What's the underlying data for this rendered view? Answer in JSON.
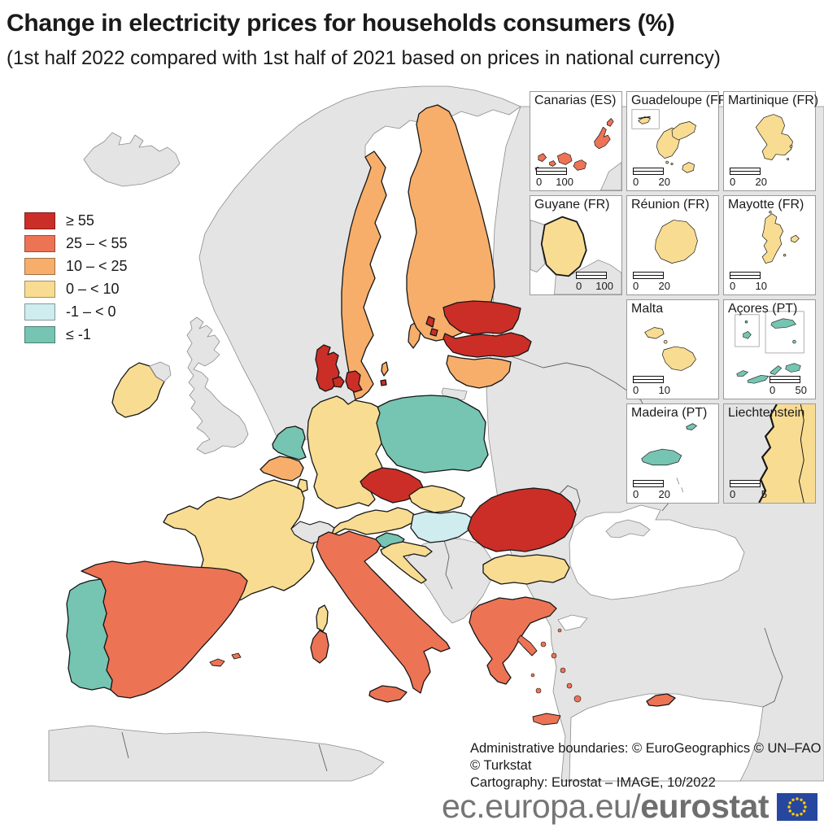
{
  "title": "Change in electricity prices for households consumers (%)",
  "subtitle": "(1st half 2022 compared with 1st half of 2021 based on prices in national currency)",
  "legend": {
    "classes": [
      {
        "key": "c1",
        "label": "≥ 55",
        "color": "#cb2e27"
      },
      {
        "key": "c2",
        "label": "25 – < 55",
        "color": "#ed7355"
      },
      {
        "key": "c3",
        "label": "10 – < 25",
        "color": "#f7ae6b"
      },
      {
        "key": "c4",
        "label": "0 – < 10",
        "color": "#f8dc92"
      },
      {
        "key": "c5",
        "label": "-1 – < 0",
        "color": "#cfecee"
      },
      {
        "key": "c6",
        "label": "≤ -1",
        "color": "#76c4b2"
      }
    ],
    "no_data_color": "#e4e4e4"
  },
  "map": {
    "country_classes": {
      "SE": "c3",
      "FI": "c3",
      "EE": "c1",
      "LV": "c1",
      "LT": "c3",
      "DK": "c1",
      "PL": "c6",
      "DE": "c4",
      "NL": "c6",
      "BE": "c3",
      "LU": "c4",
      "FR": "c4",
      "IE": "c4",
      "CZ": "c1",
      "SK": "c4",
      "AT": "c4",
      "HU": "c5",
      "SI": "c6",
      "HR": "c4",
      "RO": "c1",
      "BG": "c4",
      "EL": "c2",
      "IT": "c2",
      "ES": "c2",
      "PT": "c6",
      "CY": "c2"
    }
  },
  "insets": [
    {
      "name": "Canarias (ES)",
      "class_key": "c2",
      "scale_min": "0",
      "scale_max": "100"
    },
    {
      "name": "Guadeloupe (FR)",
      "class_key": "c4",
      "scale_min": "0",
      "scale_max": "20"
    },
    {
      "name": "Martinique (FR)",
      "class_key": "c4",
      "scale_min": "0",
      "scale_max": "20"
    },
    {
      "name": "Guyane (FR)",
      "class_key": "c4",
      "scale_min": "0",
      "scale_max": "100"
    },
    {
      "name": "Réunion (FR)",
      "class_key": "c4",
      "scale_min": "0",
      "scale_max": "20"
    },
    {
      "name": "Mayotte (FR)",
      "class_key": "c4",
      "scale_min": "0",
      "scale_max": "10"
    },
    {
      "name": "Malta",
      "class_key": "c4",
      "scale_min": "0",
      "scale_max": "10"
    },
    {
      "name": "Açores (PT)",
      "class_key": "c6",
      "scale_min": "0",
      "scale_max": "50"
    },
    {
      "name": "Madeira (PT)",
      "class_key": "c6",
      "scale_min": "0",
      "scale_max": "20"
    },
    {
      "name": "Liechtenstein",
      "class_key": "c4",
      "scale_min": "0",
      "scale_max": "5"
    }
  ],
  "footer": {
    "line1": "Administrative boundaries: © EuroGeographics © UN–FAO © Turkstat",
    "line2": "Cartography: Eurostat – IMAGE, 10/2022"
  },
  "brand": {
    "prefix": "ec.europa.eu/",
    "bold": "eurostat",
    "flag_blue": "#27479e",
    "flag_star": "#ffcc00"
  }
}
